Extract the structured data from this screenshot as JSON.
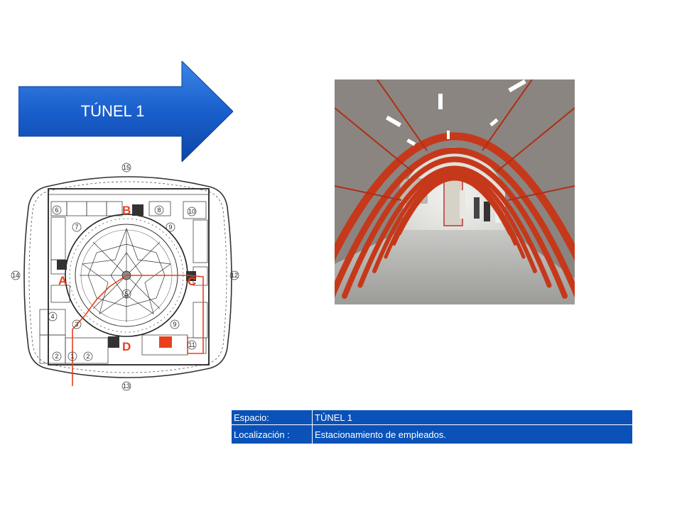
{
  "title_arrow": {
    "label": "TÚNEL 1"
  },
  "floor_plan": {
    "markers": [
      "A",
      "B",
      "C",
      "D"
    ],
    "zones": [
      "1",
      "2",
      "2",
      "3",
      "4",
      "5",
      "6",
      "7",
      "8",
      "9",
      "9",
      "10",
      "11",
      "12",
      "13",
      "14",
      "15"
    ],
    "colors": {
      "route": "#e8401c",
      "marker": "#e8401c",
      "highlight": "#e8401c"
    }
  },
  "info": {
    "rows": [
      {
        "key": "Espacio:",
        "value": "TÚNEL 1"
      },
      {
        "key": "Localización :",
        "value": "Estacionamiento de empleados."
      }
    ]
  },
  "colors": {
    "accent": "#0a52b8",
    "arrow": "#1d61c9",
    "tunnel_frame": "#c6381a"
  }
}
